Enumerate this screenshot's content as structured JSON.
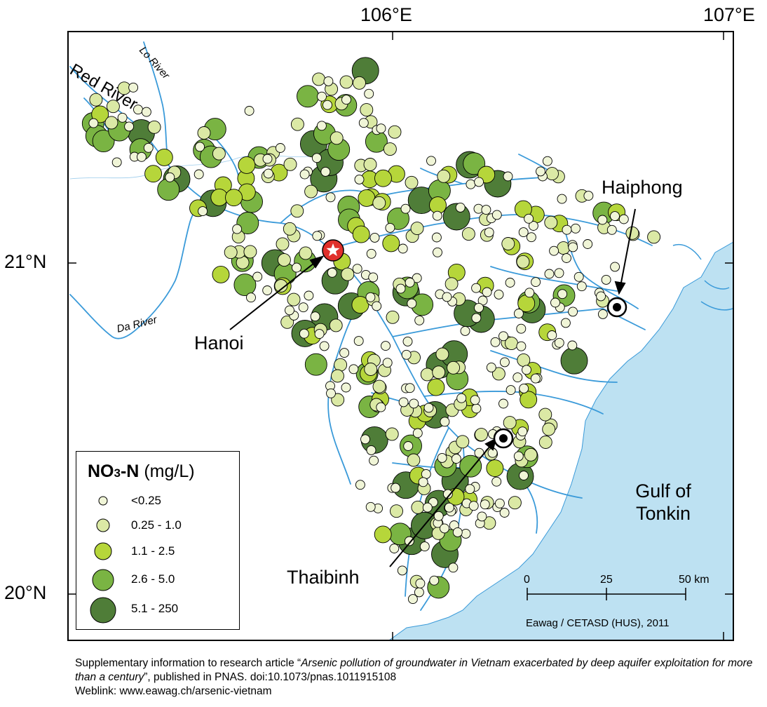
{
  "map": {
    "longitude_labels": [
      "106°E",
      "107°E"
    ],
    "latitude_labels": [
      "21°N",
      "20°N"
    ],
    "rivers": [
      "Red River",
      "Lo River",
      "Da River"
    ],
    "cities": [
      {
        "name": "Hanoi",
        "symbol": "star"
      },
      {
        "name": "Haiphong",
        "symbol": "bullseye"
      },
      {
        "name": "Thaibinh",
        "symbol": "bullseye"
      }
    ],
    "sea_label_line1": "Gulf of",
    "sea_label_line2": "Tonkin",
    "colors": {
      "sea": "#bde1f2",
      "river": "#3a9ad9",
      "land": "#ffffff",
      "hanoi_star": "#e0302b"
    }
  },
  "legend": {
    "title_main": "NO",
    "title_sub": "3",
    "title_suffix": "-N",
    "unit": "(mg/L)",
    "classes": [
      {
        "label": "<0.25",
        "color": "#f0f5d7"
      },
      {
        "label": "0.25 - 1.0",
        "color": "#dbe9a5"
      },
      {
        "label": "1.1 - 2.5",
        "color": "#b6d63a"
      },
      {
        "label": "2.6 - 5.0",
        "color": "#7ab443"
      },
      {
        "label": "5.1 - 250",
        "color": "#4f7d38"
      }
    ]
  },
  "scale": {
    "ticks": [
      "0",
      "25",
      "50 km"
    ]
  },
  "credit": "Eawag / CETASD (HUS), 2011",
  "footer": {
    "prefix": "Supplementary information to research article “",
    "title": "Arsenic pollution of groundwater in Vietnam exacerbated by deep aquifer exploitation for more than a century",
    "suffix": "”, published in PNAS. doi:10.1073/pnas.1011915108",
    "weblink": "Weblink: www.eawag.ch/arsenic-vietnam"
  }
}
